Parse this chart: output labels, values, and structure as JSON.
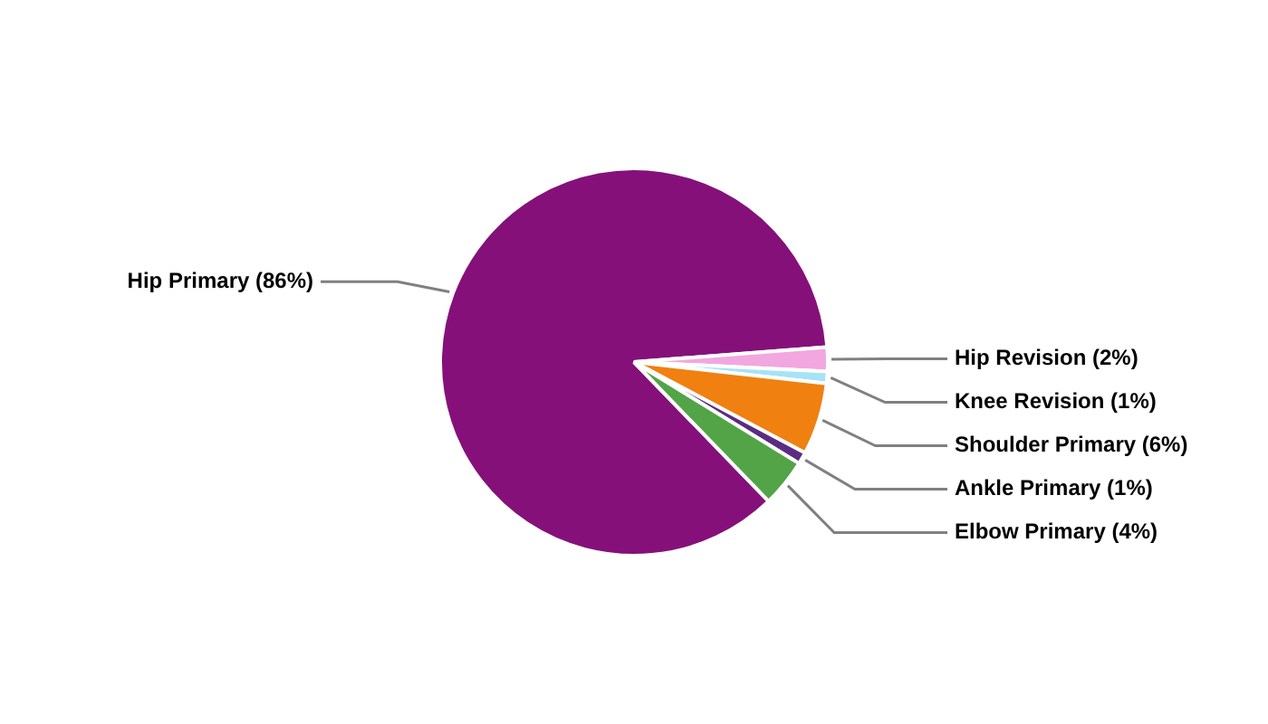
{
  "chart_data": {
    "type": "pie",
    "categories": [
      "Hip Primary (86%)",
      "Hip Revision (2%)",
      "Knee Revision (1%)",
      "Shoulder Primary (6%)",
      "Ankle Primary (1%)",
      "Elbow Primary (4%)"
    ],
    "values": [
      86,
      2,
      1,
      6,
      1,
      4
    ],
    "colors": [
      "#85107a",
      "#f2a7e0",
      "#a6e3f7",
      "#f08010",
      "#5a2d82",
      "#52a447"
    ],
    "legend": false
  }
}
